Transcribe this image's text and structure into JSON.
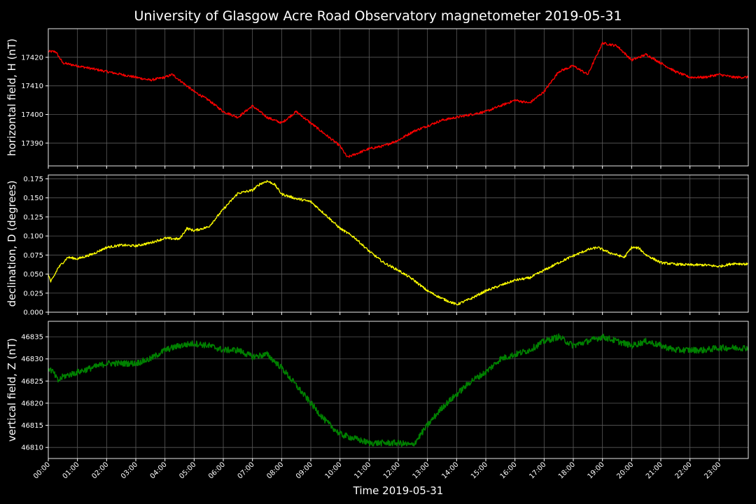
{
  "title": "University of Glasgow Acre Road Observatory magnetometer 2019-05-31",
  "xlabel": "Time 2019-05-31",
  "x_ticks": [
    "00:00",
    "01:00",
    "02:00",
    "03:00",
    "04:00",
    "05:00",
    "06:00",
    "07:00",
    "08:00",
    "09:00",
    "10:00",
    "11:00",
    "12:00",
    "13:00",
    "14:00",
    "15:00",
    "16:00",
    "17:00",
    "18:00",
    "19:00",
    "20:00",
    "21:00",
    "22:00",
    "23:00"
  ],
  "colors": {
    "background": "#000000",
    "text": "#ffffff",
    "grid": "#5a5a5a",
    "h": "#ff0000",
    "d": "#ffff00",
    "z": "#008000"
  },
  "chart_data": [
    {
      "type": "line",
      "panel": "H",
      "ylabel": "horizontal field, H (nT)",
      "color": "#ff0000",
      "ylim": [
        17382,
        17430
      ],
      "y_ticks": [
        17390,
        17400,
        17410,
        17420
      ],
      "grid": true,
      "x": [
        "00:00",
        "00:15",
        "00:30",
        "01:00",
        "01:30",
        "02:00",
        "02:30",
        "03:00",
        "03:30",
        "04:00",
        "04:15",
        "04:30",
        "05:00",
        "05:30",
        "06:00",
        "06:30",
        "07:00",
        "07:30",
        "08:00",
        "08:30",
        "09:00",
        "09:30",
        "10:00",
        "10:15",
        "10:30",
        "11:00",
        "11:30",
        "12:00",
        "12:30",
        "13:00",
        "13:30",
        "14:00",
        "14:30",
        "15:00",
        "15:30",
        "16:00",
        "16:30",
        "17:00",
        "17:30",
        "18:00",
        "18:30",
        "19:00",
        "19:30",
        "20:00",
        "20:30",
        "21:00",
        "21:30",
        "22:00",
        "22:30",
        "23:00",
        "23:30",
        "23:59"
      ],
      "values": [
        17422,
        17422,
        17418,
        17417,
        17416,
        17415,
        17414,
        17413,
        17412,
        17413,
        17414,
        17412,
        17408,
        17405,
        17401,
        17399,
        17403,
        17399,
        17397,
        17401,
        17397,
        17393,
        17389,
        17385,
        17386,
        17388,
        17389,
        17391,
        17394,
        17396,
        17398,
        17399,
        17400,
        17401,
        17403,
        17405,
        17404,
        17408,
        17415,
        17417,
        17414,
        17425,
        17424,
        17419,
        17421,
        17418,
        17415,
        17413,
        17413,
        17414,
        17413,
        17413
      ]
    },
    {
      "type": "line",
      "panel": "D",
      "ylabel": "declination, D (degrees)",
      "color": "#ffff00",
      "ylim": [
        0.0,
        0.18
      ],
      "y_ticks": [
        0.0,
        0.025,
        0.05,
        0.075,
        0.1,
        0.125,
        0.15,
        0.175
      ],
      "grid": true,
      "x": [
        "00:00",
        "00:05",
        "00:10",
        "00:20",
        "00:40",
        "01:00",
        "01:30",
        "02:00",
        "02:30",
        "03:00",
        "03:30",
        "04:00",
        "04:30",
        "04:45",
        "05:00",
        "05:30",
        "06:00",
        "06:30",
        "07:00",
        "07:15",
        "07:30",
        "07:45",
        "08:00",
        "08:30",
        "09:00",
        "09:30",
        "10:00",
        "10:30",
        "11:00",
        "11:30",
        "12:00",
        "12:30",
        "13:00",
        "13:30",
        "14:00",
        "14:30",
        "15:00",
        "15:30",
        "16:00",
        "16:30",
        "17:00",
        "17:30",
        "18:00",
        "18:30",
        "18:50",
        "19:15",
        "19:45",
        "20:00",
        "20:15",
        "20:30",
        "21:00",
        "21:30",
        "22:00",
        "22:30",
        "23:00",
        "23:30",
        "23:59"
      ],
      "values": [
        0.05,
        0.04,
        0.045,
        0.058,
        0.072,
        0.07,
        0.076,
        0.085,
        0.088,
        0.087,
        0.091,
        0.097,
        0.096,
        0.11,
        0.107,
        0.112,
        0.135,
        0.156,
        0.16,
        0.168,
        0.172,
        0.168,
        0.155,
        0.149,
        0.145,
        0.128,
        0.11,
        0.098,
        0.08,
        0.065,
        0.055,
        0.043,
        0.028,
        0.018,
        0.01,
        0.018,
        0.028,
        0.035,
        0.042,
        0.045,
        0.055,
        0.065,
        0.074,
        0.082,
        0.085,
        0.078,
        0.072,
        0.085,
        0.084,
        0.075,
        0.065,
        0.063,
        0.062,
        0.062,
        0.06,
        0.064,
        0.063
      ]
    },
    {
      "type": "line",
      "panel": "Z",
      "ylabel": "vertical field, Z (nT)",
      "color": "#008000",
      "ylim": [
        46807.5,
        46838.5
      ],
      "y_ticks": [
        46810,
        46815,
        46820,
        46825,
        46830,
        46835
      ],
      "grid": true,
      "x": [
        "00:00",
        "00:10",
        "00:20",
        "00:30",
        "01:00",
        "01:30",
        "02:00",
        "02:30",
        "03:00",
        "03:30",
        "04:00",
        "04:30",
        "05:00",
        "05:30",
        "06:00",
        "06:30",
        "07:00",
        "07:30",
        "08:00",
        "08:30",
        "09:00",
        "09:30",
        "10:00",
        "10:30",
        "11:00",
        "11:30",
        "12:00",
        "12:30",
        "13:00",
        "13:30",
        "14:00",
        "14:30",
        "15:00",
        "15:30",
        "16:00",
        "16:30",
        "17:00",
        "17:30",
        "18:00",
        "18:30",
        "19:00",
        "19:30",
        "20:00",
        "20:30",
        "21:00",
        "21:30",
        "22:00",
        "22:30",
        "23:00",
        "23:30",
        "23:59"
      ],
      "values": [
        46828,
        46827,
        46825,
        46826,
        46827,
        46828,
        46829,
        46829,
        46829,
        46830,
        46832,
        46833,
        46833.5,
        46833,
        46832,
        46832,
        46830.5,
        46831,
        46828,
        46824,
        46820,
        46816,
        46813,
        46812,
        46811,
        46811,
        46811,
        46810.5,
        46815,
        46819,
        46822,
        46825,
        46827,
        46830,
        46831,
        46832,
        46834,
        46835,
        46833,
        46834,
        46835,
        46834,
        46833,
        46834,
        46833,
        46832,
        46832,
        46832,
        46832.5,
        46832.5,
        46832.5
      ]
    }
  ]
}
